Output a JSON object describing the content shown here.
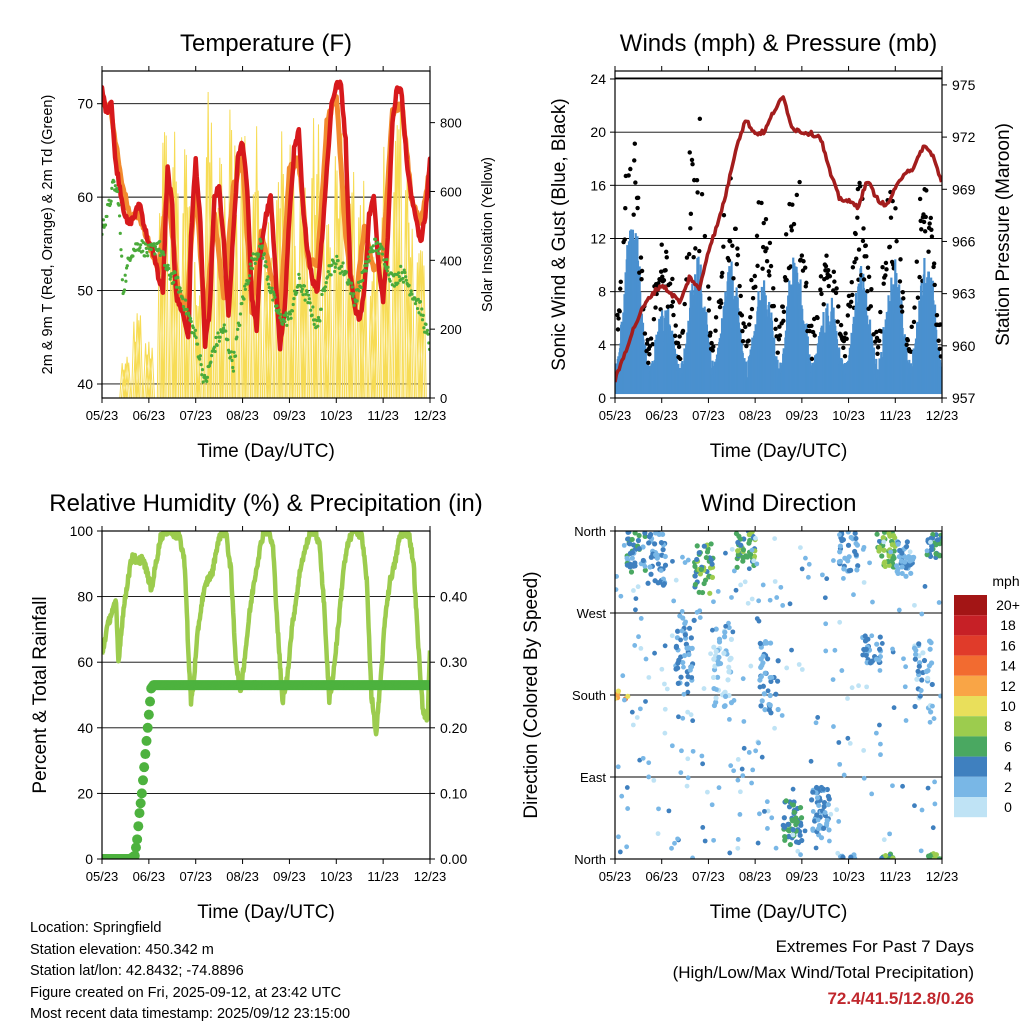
{
  "colors": {
    "temp_2m": "#d7191c",
    "temp_9m": "#f28a2e",
    "dewpoint": "#4aaa3a",
    "solar": "#f7dc55",
    "gust": "#000000",
    "wind": "#4a90cf",
    "pressure": "#a31d1d",
    "humidity": "#9ccc4e",
    "precip": "#4db23e",
    "extremes_text": "#c0272d"
  },
  "wind_speed_scale": {
    "title": "mph",
    "labels": [
      "20+",
      "18",
      "16",
      "14",
      "12",
      "10",
      "8",
      "6",
      "4",
      "2",
      "0"
    ],
    "colors": [
      "#a31515",
      "#c62026",
      "#e03b2a",
      "#f26b30",
      "#f9a546",
      "#e9df5b",
      "#9ccc4e",
      "#4aa861",
      "#3f80bf",
      "#79b7e6",
      "#bfe3f5"
    ]
  },
  "chart_data": [
    {
      "id": "temperature",
      "type": "line",
      "title": "Temperature (F)",
      "xlabel": "Time (Day/UTC)",
      "ylabel": "2m & 9m T (Red, Orange) & 2m Td (Green)",
      "y2label": "Solar Insolation (Yellow)",
      "x_ticks": [
        "05/23",
        "06/23",
        "07/23",
        "08/23",
        "09/23",
        "10/23",
        "11/23",
        "12/23"
      ],
      "xlim": [
        0,
        7
      ],
      "ylim": [
        38.5,
        73.5
      ],
      "y_ticks": [
        40,
        50,
        60,
        70
      ],
      "y2lim": [
        0,
        950
      ],
      "y2_ticks": [
        0,
        200,
        400,
        600,
        800
      ],
      "series": [
        {
          "name": "2m T",
          "color_key": "temp_2m",
          "x": [
            0,
            0.1,
            0.2,
            0.28,
            0.35,
            0.45,
            0.55,
            0.7,
            0.8,
            0.9,
            1.0,
            1.05,
            1.1,
            1.15,
            1.22,
            1.3,
            1.4,
            1.5,
            1.55,
            1.6,
            1.7,
            1.8,
            1.85,
            1.9,
            2.0,
            2.1,
            2.2,
            2.3,
            2.4,
            2.5,
            2.6,
            2.7,
            2.8,
            2.9,
            3.0,
            3.1,
            3.2,
            3.3,
            3.4,
            3.5,
            3.6,
            3.7,
            3.8,
            3.9,
            4.0,
            4.1,
            4.2,
            4.3,
            4.4,
            4.5,
            4.6,
            4.7,
            4.8,
            4.9,
            5.0,
            5.1,
            5.2,
            5.3,
            5.4,
            5.5,
            5.6,
            5.7,
            5.8,
            5.9,
            6.0,
            6.1,
            6.2,
            6.3,
            6.4,
            6.5,
            6.6,
            6.7,
            6.8,
            6.9,
            7.0
          ],
          "y": [
            71.5,
            69,
            70.5,
            64,
            62,
            59,
            57,
            58,
            59.5,
            57,
            55,
            54.5,
            54,
            53,
            51,
            50,
            63,
            59,
            52,
            49,
            48,
            46,
            45,
            56,
            64,
            57,
            44,
            48,
            60,
            61,
            55,
            47,
            56,
            64,
            66,
            61,
            49,
            46,
            55,
            58,
            60,
            52,
            44,
            48,
            58,
            65,
            67,
            58,
            54,
            51,
            50,
            56,
            63,
            70,
            72,
            72,
            66,
            52,
            48,
            47,
            50,
            58,
            60,
            53,
            49,
            56,
            68,
            72,
            71,
            64,
            60,
            58,
            55,
            58,
            64
          ]
        },
        {
          "name": "9m T",
          "color_key": "temp_9m",
          "x": [
            0,
            0.2,
            0.4,
            0.6,
            0.8,
            1.0,
            1.2,
            1.4,
            1.6,
            1.8,
            2.0,
            2.2,
            2.4,
            2.6,
            2.8,
            3.0,
            3.2,
            3.4,
            3.6,
            3.8,
            4.0,
            4.2,
            4.4,
            4.6,
            4.8,
            5.0,
            5.2,
            5.4,
            5.6,
            5.8,
            6.0,
            6.2,
            6.4,
            6.6,
            6.8,
            7.0
          ],
          "y": [
            70.5,
            69,
            62,
            58,
            58,
            55,
            52,
            61,
            51,
            47,
            62,
            46,
            58,
            49,
            61,
            64,
            48,
            56,
            52,
            47,
            63,
            64,
            53,
            53,
            68,
            71,
            56,
            48,
            57,
            52,
            54,
            69,
            70,
            60,
            57,
            63
          ]
        },
        {
          "name": "2m Td",
          "color_key": "dewpoint",
          "x": [
            0,
            0.15,
            0.25,
            0.35,
            0.45,
            0.6,
            0.8,
            1.0,
            1.2,
            1.4,
            1.6,
            1.8,
            2.0,
            2.2,
            2.4,
            2.6,
            2.8,
            3.0,
            3.2,
            3.4,
            3.6,
            3.8,
            4.0,
            4.2,
            4.4,
            4.6,
            4.8,
            5.0,
            5.2,
            5.4,
            5.6,
            5.8,
            6.0,
            6.2,
            6.4,
            6.6,
            6.8,
            7.0
          ],
          "y": [
            56.5,
            59,
            61.5,
            60,
            50,
            54,
            55,
            54,
            55,
            52,
            51,
            48,
            45,
            40,
            44,
            46,
            42,
            49,
            53,
            55,
            50,
            47,
            47,
            51,
            49,
            46,
            52,
            53,
            52,
            49,
            52,
            55,
            54,
            51,
            52,
            50,
            48,
            44
          ]
        },
        {
          "name": "Solar Insolation",
          "color_key": "solar",
          "axis": "y2",
          "x": [
            0.5,
            0.75,
            1.0,
            1.3,
            1.55,
            1.8,
            2.05,
            2.3,
            2.55,
            2.8,
            3.05,
            3.3,
            3.55,
            3.8,
            4.05,
            4.3,
            4.55,
            4.8,
            5.05,
            5.3,
            5.55,
            5.8,
            6.05,
            6.3,
            6.55,
            6.8
          ],
          "y": [
            120,
            260,
            180,
            820,
            880,
            750,
            430,
            900,
            740,
            900,
            880,
            810,
            600,
            850,
            790,
            720,
            830,
            600,
            770,
            700,
            650,
            450,
            800,
            860,
            740,
            500
          ]
        }
      ]
    },
    {
      "id": "winds_pressure",
      "type": "scatter",
      "title": "Winds (mph) & Pressure (mb)",
      "xlabel": "Time (Day/UTC)",
      "ylabel": "Sonic Wind & Gust (Blue, Black)",
      "y2label": "Station Pressure (Maroon)",
      "x_ticks": [
        "05/23",
        "06/23",
        "07/23",
        "08/23",
        "09/23",
        "10/23",
        "11/23",
        "12/23"
      ],
      "xlim": [
        0,
        7
      ],
      "ylim": [
        0,
        24.6
      ],
      "y_ticks": [
        0,
        4,
        8,
        12,
        16,
        20,
        24
      ],
      "y2lim": [
        957,
        975.8
      ],
      "y2_ticks": [
        957,
        960,
        963,
        966,
        969,
        972,
        975
      ],
      "diurnal_profile": {
        "gust_peaks": [
          20,
          8,
          22,
          14,
          13,
          15,
          10,
          13,
          14,
          14
        ],
        "wind_peaks": [
          12,
          5,
          9,
          8,
          7,
          9,
          6,
          8,
          8,
          9
        ]
      },
      "series": [
        {
          "name": "Station Pressure",
          "color_key": "pressure",
          "axis": "y2",
          "x": [
            0,
            0.2,
            0.4,
            0.6,
            0.8,
            1.0,
            1.2,
            1.4,
            1.6,
            1.8,
            2.0,
            2.2,
            2.4,
            2.6,
            2.8,
            3.0,
            3.2,
            3.4,
            3.6,
            3.8,
            4.0,
            4.2,
            4.4,
            4.6,
            4.8,
            5.0,
            5.2,
            5.4,
            5.6,
            5.8,
            6.0,
            6.2,
            6.4,
            6.6,
            6.8,
            7.0
          ],
          "y": [
            958,
            959.5,
            961,
            962.2,
            963,
            963.5,
            963,
            962.5,
            964,
            963.2,
            965.5,
            967,
            969,
            971.5,
            973,
            972.2,
            972.3,
            973.5,
            974.3,
            972.5,
            972.3,
            972.2,
            972,
            970,
            968.5,
            968.3,
            968,
            969.5,
            968.5,
            968,
            969,
            970,
            970.2,
            971.5,
            971,
            969.3
          ]
        }
      ]
    },
    {
      "id": "humidity_precip",
      "type": "line",
      "title": "Relative Humidity (%) & Precipitation (in)",
      "xlabel": "Time (Day/UTC)",
      "ylabel": "Percent & Total Rainfall",
      "x_ticks": [
        "05/23",
        "06/23",
        "07/23",
        "08/23",
        "09/23",
        "10/23",
        "11/23",
        "12/23"
      ],
      "xlim": [
        0,
        7
      ],
      "ylim": [
        0,
        100
      ],
      "y_ticks": [
        0,
        20,
        40,
        60,
        80,
        100
      ],
      "y2lim": [
        0,
        0.5
      ],
      "y2_ticks": [
        "0.00",
        "0.10",
        "0.20",
        "0.30",
        "0.40"
      ],
      "series": [
        {
          "name": "Relative Humidity",
          "color_key": "humidity",
          "x": [
            0,
            0.1,
            0.2,
            0.3,
            0.35,
            0.45,
            0.55,
            0.65,
            0.75,
            0.85,
            0.95,
            1.05,
            1.15,
            1.25,
            1.35,
            1.45,
            1.55,
            1.65,
            1.75,
            1.8,
            1.85,
            1.9,
            1.95,
            2.05,
            2.15,
            2.25,
            2.35,
            2.45,
            2.55,
            2.65,
            2.75,
            2.85,
            2.95,
            3.05,
            3.15,
            3.25,
            3.35,
            3.45,
            3.55,
            3.65,
            3.75,
            3.85,
            3.95,
            4.05,
            4.15,
            4.25,
            4.35,
            4.45,
            4.55,
            4.65,
            4.75,
            4.85,
            4.95,
            5.05,
            5.15,
            5.25,
            5.35,
            5.45,
            5.55,
            5.65,
            5.75,
            5.85,
            5.95,
            6.05,
            6.15,
            6.25,
            6.35,
            6.45,
            6.55,
            6.65,
            6.75,
            6.85,
            6.95,
            7.0
          ],
          "y": [
            62,
            70,
            75,
            78,
            60,
            75,
            85,
            93,
            90,
            92,
            88,
            82,
            90,
            98,
            100,
            100,
            99,
            98,
            92,
            80,
            60,
            48,
            53,
            70,
            80,
            85,
            87,
            95,
            100,
            99,
            88,
            62,
            50,
            62,
            75,
            85,
            93,
            100,
            100,
            95,
            70,
            48,
            55,
            70,
            80,
            90,
            95,
            100,
            100,
            95,
            75,
            48,
            58,
            72,
            88,
            96,
            100,
            100,
            98,
            85,
            50,
            38,
            55,
            75,
            85,
            90,
            98,
            100,
            99,
            90,
            65,
            45,
            43,
            63
          ]
        },
        {
          "name": "Total Precipitation",
          "color_key": "precip",
          "axis": "y2",
          "x": [
            0,
            0.2,
            0.4,
            0.6,
            0.7,
            0.75,
            0.8,
            0.85,
            0.9,
            0.95,
            1.0,
            1.05,
            1.1,
            2,
            3,
            4,
            5,
            6,
            7
          ],
          "y": [
            0,
            0,
            0,
            0,
            0.005,
            0.03,
            0.07,
            0.1,
            0.14,
            0.18,
            0.22,
            0.26,
            0.265,
            0.265,
            0.265,
            0.265,
            0.265,
            0.265,
            0.265
          ]
        }
      ]
    },
    {
      "id": "wind_direction",
      "type": "scatter",
      "title": "Wind Direction",
      "xlabel": "Time (Day/UTC)",
      "ylabel": "Direction (Colored By Speed)",
      "x_ticks": [
        "05/23",
        "06/23",
        "07/23",
        "08/23",
        "09/23",
        "10/23",
        "11/23",
        "12/23"
      ],
      "xlim": [
        0,
        7
      ],
      "ylim": [
        0,
        360
      ],
      "y_ticks": [
        "North",
        "East",
        "South",
        "West",
        "North"
      ],
      "y_tick_values": [
        0,
        90,
        180,
        270,
        360
      ],
      "clusters": [
        {
          "x": 0.1,
          "dir": 180,
          "spread": 5,
          "speed": 12,
          "n": 8
        },
        {
          "x": 0.45,
          "dir": 335,
          "spread": 25,
          "speed": 4,
          "n": 40
        },
        {
          "x": 0.9,
          "dir": 330,
          "spread": 30,
          "speed": 3,
          "n": 40
        },
        {
          "x": 1.5,
          "dir": 230,
          "spread": 40,
          "speed": 3,
          "n": 40
        },
        {
          "x": 1.9,
          "dir": 320,
          "spread": 30,
          "speed": 6,
          "n": 45
        },
        {
          "x": 2.3,
          "dir": 210,
          "spread": 50,
          "speed": 1,
          "n": 45
        },
        {
          "x": 2.8,
          "dir": 340,
          "spread": 20,
          "speed": 6,
          "n": 40
        },
        {
          "x": 3.3,
          "dir": 200,
          "spread": 40,
          "speed": 3,
          "n": 40
        },
        {
          "x": 3.8,
          "dir": 40,
          "spread": 25,
          "speed": 5,
          "n": 50
        },
        {
          "x": 4.4,
          "dir": 50,
          "spread": 30,
          "speed": 3,
          "n": 50
        },
        {
          "x": 5.0,
          "dir": 340,
          "spread": 25,
          "speed": 3,
          "n": 40
        },
        {
          "x": 5.5,
          "dir": 230,
          "spread": 15,
          "speed": 3,
          "n": 30
        },
        {
          "x": 5.8,
          "dir": 340,
          "spread": 20,
          "speed": 7,
          "n": 45
        },
        {
          "x": 6.2,
          "dir": 330,
          "spread": 20,
          "speed": 3,
          "n": 40
        },
        {
          "x": 6.6,
          "dir": 200,
          "spread": 40,
          "speed": 2,
          "n": 35
        },
        {
          "x": 6.85,
          "dir": 345,
          "spread": 15,
          "speed": 5,
          "n": 30
        },
        {
          "x": 6.9,
          "dir": 5,
          "spread": 5,
          "speed": 7,
          "n": 10
        },
        {
          "x": 5.9,
          "dir": 3,
          "spread": 3,
          "speed": 6,
          "n": 10
        }
      ]
    }
  ],
  "footer": {
    "location": "Location: Springfield",
    "elevation": "Station elevation: 450.342 m",
    "latlon": "Station lat/lon: 42.8432; -74.8896",
    "created": "Figure created on Fri, 2025-09-12, at 23:42 UTC",
    "recent": "Most recent data timestamp: 2025/09/12 23:15:00"
  },
  "extremes": {
    "line1": "Extremes For Past 7 Days",
    "line2": "(High/Low/Max Wind/Total Precipitation)",
    "value": "72.4/41.5/12.8/0.26"
  }
}
